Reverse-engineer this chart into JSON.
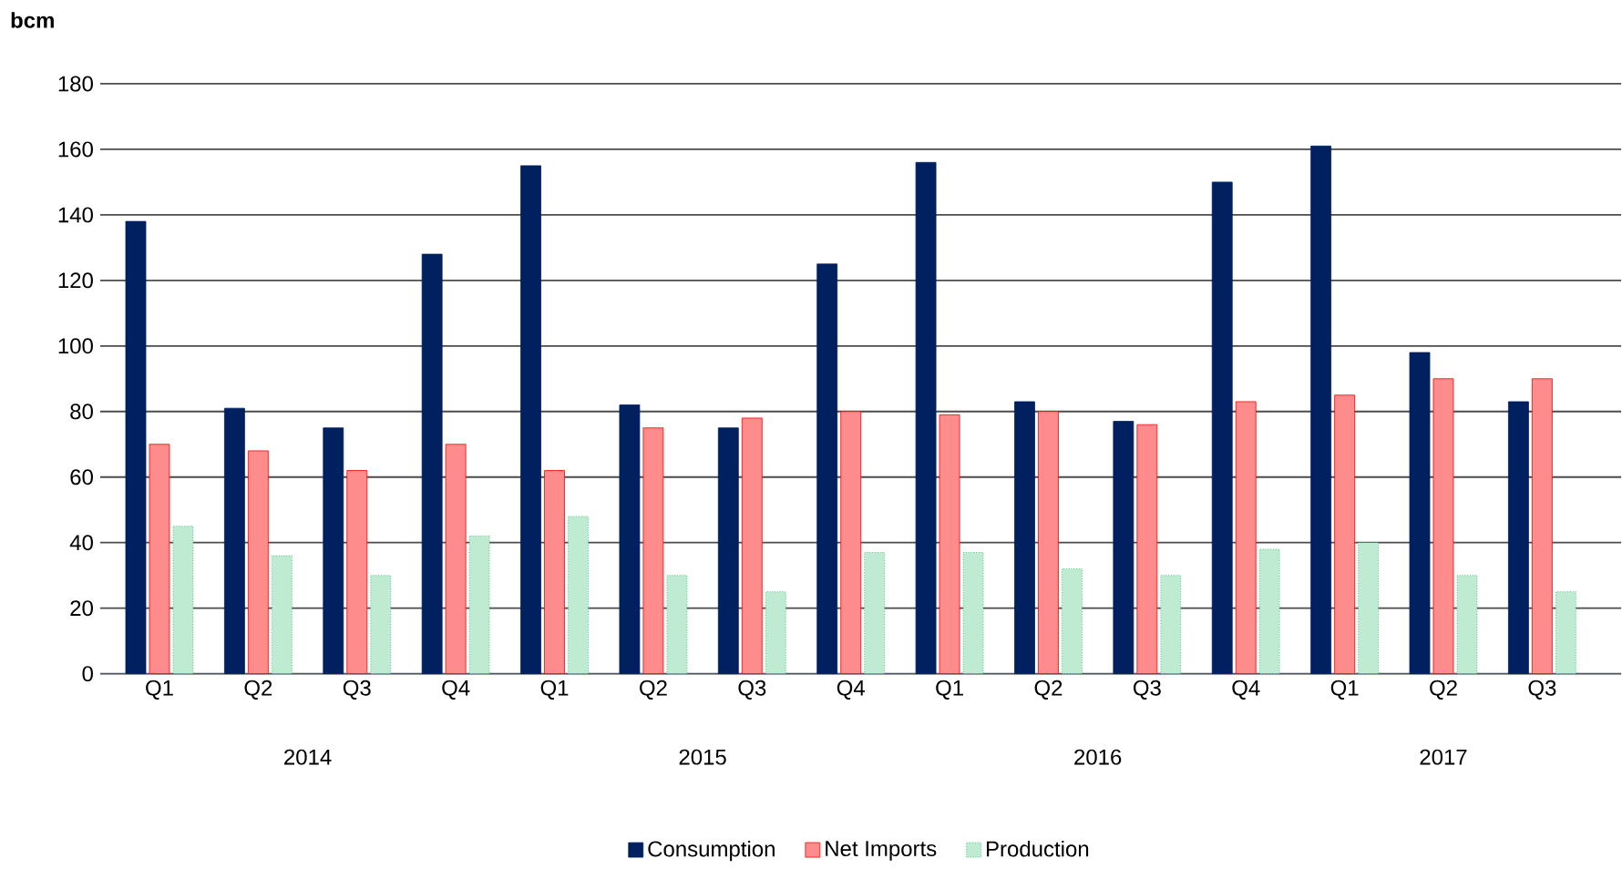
{
  "chart_data": {
    "type": "bar",
    "ylabel": "bcm",
    "categories": [
      "Q1",
      "Q2",
      "Q3",
      "Q4",
      "Q1",
      "Q2",
      "Q3",
      "Q4",
      "Q1",
      "Q2",
      "Q3",
      "Q4",
      "Q1",
      "Q2",
      "Q3"
    ],
    "annotations": [
      "2014",
      "2015",
      "2016",
      "2017"
    ],
    "series": [
      {
        "name": "Consumption",
        "color": "#002060",
        "values": [
          138,
          81,
          75,
          128,
          155,
          82,
          75,
          125,
          156,
          83,
          77,
          150,
          161,
          98,
          83
        ]
      },
      {
        "name": "Net Imports",
        "color": "#ff0000",
        "values": [
          70,
          68,
          62,
          70,
          62,
          75,
          78,
          80,
          79,
          80,
          76,
          83,
          85,
          90,
          90
        ]
      },
      {
        "name": "Production",
        "color": "#00b050",
        "values": [
          45,
          36,
          30,
          42,
          48,
          30,
          25,
          37,
          37,
          32,
          30,
          38,
          40,
          30,
          25
        ]
      }
    ],
    "ylim": [
      0,
      180
    ],
    "yticks": [
      0,
      20,
      40,
      60,
      80,
      100,
      120,
      140,
      160,
      180
    ],
    "grid": "y",
    "legend": "bottom"
  }
}
